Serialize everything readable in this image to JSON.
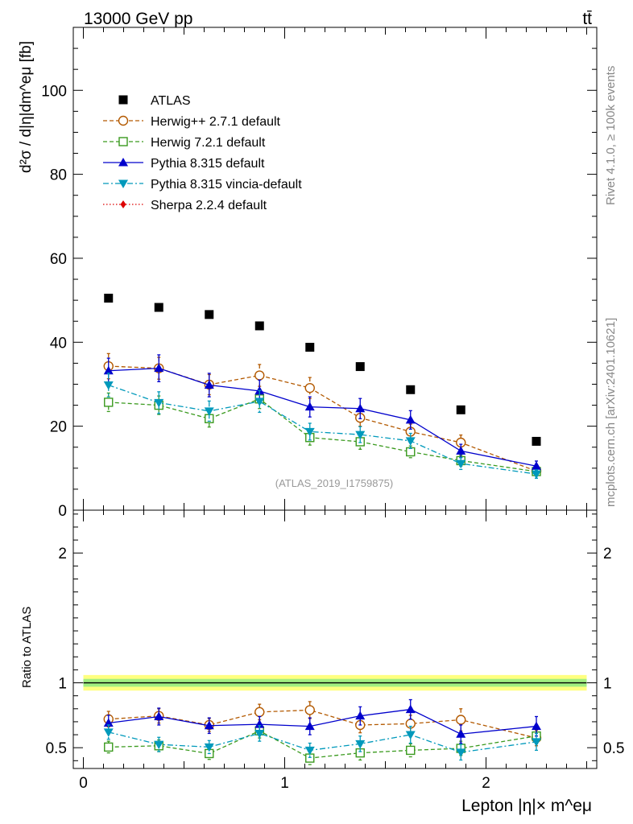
{
  "header": {
    "energy_label": "13000 GeV pp",
    "process_label": "tt̄"
  },
  "side_labels": {
    "rivet": "Rivet 4.1.0, ≥ 100k events",
    "mcplots": "mcplots.cern.ch [arXiv:2401.10621]"
  },
  "watermark": "(ATLAS_2019_I1759875)",
  "colors": {
    "atlas": "#000000",
    "herwigpp": "#b35900",
    "herwig7": "#3a9a1e",
    "pythia": "#0000cc",
    "vincia": "#0099bb",
    "sherpa": "#dd0000",
    "band_outer": "#ffff80",
    "band_inner": "#a0ee80"
  },
  "chart_data": [
    {
      "type": "scatter",
      "panel": "main",
      "ylabel": "d²σ / d|η|dm^eμ [fb]",
      "ylim": [
        0,
        115
      ],
      "xlim": [
        -0.05,
        2.55
      ],
      "yticks": [
        0,
        20,
        40,
        60,
        80,
        100
      ],
      "ytick_labels": [
        "0",
        "20",
        "40",
        "60",
        "80",
        "100"
      ],
      "x": [
        0.125,
        0.375,
        0.625,
        0.875,
        1.125,
        1.375,
        1.625,
        1.875,
        2.25
      ],
      "series": [
        {
          "name": "ATLAS",
          "key": "atlas",
          "style": "data",
          "marker": "square",
          "values": [
            50.5,
            48.3,
            46.6,
            43.9,
            38.8,
            34.2,
            28.7,
            23.9,
            16.4
          ],
          "errors": [
            0,
            0,
            0,
            0,
            0,
            0,
            0,
            0,
            0
          ]
        },
        {
          "name": "Herwig++ 2.7.1 default",
          "key": "herwigpp",
          "style": "dashed",
          "marker": "circle",
          "values": [
            34.3,
            33.8,
            29.9,
            32.1,
            29.1,
            22.0,
            18.7,
            16.1,
            9.3
          ],
          "errors": [
            3.0,
            2.6,
            2.4,
            2.6,
            2.5,
            2.0,
            1.8,
            1.8,
            1.0
          ]
        },
        {
          "name": "Herwig 7.2.1 default",
          "key": "herwig7",
          "style": "dashed",
          "marker": "square-open",
          "values": [
            25.7,
            25.0,
            21.8,
            26.5,
            17.3,
            16.3,
            13.9,
            11.8,
            9.2
          ],
          "errors": [
            2.2,
            2.2,
            2.0,
            2.3,
            1.8,
            1.8,
            1.4,
            1.3,
            0.9
          ]
        },
        {
          "name": "Pythia 8.315 default",
          "key": "pythia",
          "style": "solid",
          "marker": "triangle-up",
          "values": [
            33.2,
            33.8,
            29.8,
            28.4,
            24.6,
            24.2,
            21.5,
            14.1,
            10.5
          ],
          "errors": [
            3.0,
            3.2,
            2.8,
            2.6,
            2.4,
            2.4,
            2.2,
            1.6,
            1.2
          ]
        },
        {
          "name": "Pythia 8.315 vincia-default",
          "key": "vincia",
          "style": "dashdot",
          "marker": "triangle-down",
          "values": [
            29.8,
            25.6,
            23.6,
            25.9,
            18.7,
            18.0,
            16.5,
            11.1,
            8.6
          ],
          "errors": [
            2.8,
            2.6,
            2.4,
            2.6,
            2.0,
            1.9,
            1.8,
            1.4,
            1.0
          ]
        },
        {
          "name": "Sherpa 2.2.4 default",
          "key": "sherpa",
          "style": "dotted",
          "marker": "diamond",
          "values": [],
          "errors": []
        }
      ]
    },
    {
      "type": "scatter",
      "panel": "ratio",
      "ylabel": "Ratio to ATLAS",
      "xlabel": "Lepton |η|× m^eμ",
      "ylim": [
        0.34,
        2.33
      ],
      "xlim": [
        -0.05,
        2.55
      ],
      "yticks": [
        0.5,
        1,
        2
      ],
      "ytick_labels": [
        "0.5",
        "1",
        "2"
      ],
      "xticks": [
        0,
        1,
        2
      ],
      "xtick_labels": [
        "0",
        "1",
        "2"
      ],
      "band_outer": [
        0.94,
        1.06
      ],
      "band_inner": [
        0.97,
        1.03
      ],
      "x": [
        0.125,
        0.375,
        0.625,
        0.875,
        1.125,
        1.375,
        1.625,
        1.875,
        2.25
      ],
      "series": [
        {
          "name": "Herwig++ 2.7.1 default",
          "key": "herwigpp",
          "style": "dashed",
          "marker": "circle",
          "values": [
            0.72,
            0.745,
            0.675,
            0.775,
            0.79,
            0.675,
            0.685,
            0.715,
            0.575
          ],
          "errors": [
            0.06,
            0.055,
            0.05,
            0.06,
            0.065,
            0.06,
            0.065,
            0.085,
            0.06
          ]
        },
        {
          "name": "Herwig 7.2.1 default",
          "key": "herwig7",
          "style": "dashed",
          "marker": "square-open",
          "values": [
            0.505,
            0.515,
            0.455,
            0.63,
            0.42,
            0.46,
            0.48,
            0.495,
            0.59
          ],
          "errors": [
            0.045,
            0.045,
            0.045,
            0.055,
            0.05,
            0.055,
            0.05,
            0.055,
            0.06
          ]
        },
        {
          "name": "Pythia 8.315 default",
          "key": "pythia",
          "style": "solid",
          "marker": "triangle-up",
          "values": [
            0.69,
            0.74,
            0.67,
            0.68,
            0.665,
            0.745,
            0.795,
            0.605,
            0.665
          ],
          "errors": [
            0.06,
            0.065,
            0.06,
            0.06,
            0.065,
            0.07,
            0.075,
            0.07,
            0.075
          ]
        },
        {
          "name": "Pythia 8.315 vincia-default",
          "key": "vincia",
          "style": "dashdot",
          "marker": "triangle-down",
          "values": [
            0.62,
            0.525,
            0.505,
            0.61,
            0.48,
            0.53,
            0.6,
            0.465,
            0.545
          ],
          "errors": [
            0.055,
            0.055,
            0.05,
            0.06,
            0.055,
            0.06,
            0.065,
            0.06,
            0.065
          ]
        }
      ]
    }
  ]
}
